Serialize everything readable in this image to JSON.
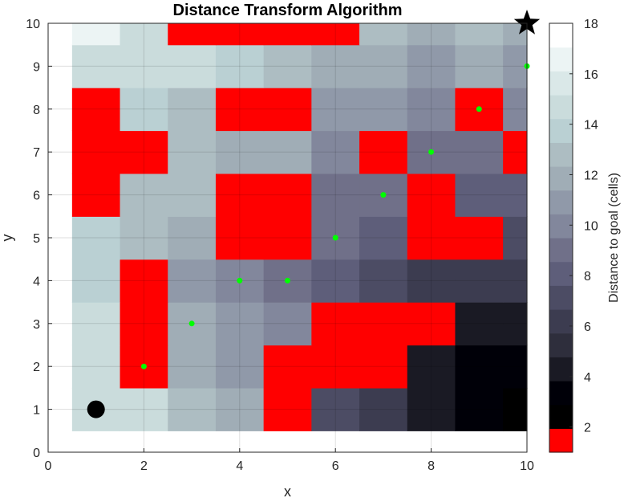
{
  "chart_data": {
    "type": "heatmap",
    "title": "Distance Transform Algorithm",
    "xlabel": "x",
    "ylabel": "y",
    "xlim": [
      0,
      10
    ],
    "ylim": [
      0,
      10
    ],
    "x_ticks": [
      "0",
      "2",
      "4",
      "6",
      "8",
      "10"
    ],
    "y_ticks": [
      "0",
      "1",
      "2",
      "3",
      "4",
      "5",
      "6",
      "7",
      "8",
      "9",
      "10"
    ],
    "grid": true,
    "colorbar": {
      "label": "Distance to goal (cells)",
      "range": [
        1,
        18
      ],
      "ticks": [
        "2",
        "4",
        "6",
        "8",
        "10",
        "12",
        "14",
        "16",
        "18"
      ],
      "obstacle_color": "#ff0000",
      "colors": [
        "#ff0000",
        "#000000",
        "#000008",
        "#1a1a24",
        "#2e2e3c",
        "#3c3c50",
        "#4c4c64",
        "#5e5e7a",
        "#707089",
        "#82879c",
        "#9099a9",
        "#a0adb6",
        "#adbdc2",
        "#bad0d3",
        "#cadcdc",
        "#dae8e8",
        "#ecf4f4",
        "#ffffff"
      ]
    },
    "cell_values": [
      [
        null,
        15,
        15,
        13,
        12,
        null,
        7,
        6,
        4,
        3,
        2
      ],
      [
        null,
        15,
        null,
        12,
        11,
        null,
        null,
        null,
        4,
        3,
        3
      ],
      [
        null,
        15,
        null,
        12,
        11,
        10,
        null,
        null,
        null,
        4,
        4
      ],
      [
        null,
        14,
        null,
        11,
        10,
        9,
        8,
        7,
        6,
        6,
        6
      ],
      [
        null,
        14,
        13,
        12,
        null,
        null,
        9,
        8,
        null,
        null,
        7
      ],
      [
        null,
        null,
        13,
        13,
        null,
        null,
        9,
        9,
        null,
        8,
        8
      ],
      [
        null,
        null,
        null,
        13,
        12,
        12,
        10,
        null,
        9,
        9,
        null
      ],
      [
        null,
        null,
        14,
        13,
        null,
        null,
        11,
        11,
        10,
        null,
        10
      ],
      [
        null,
        15,
        15,
        15,
        14,
        13,
        12,
        12,
        11,
        12,
        11
      ],
      [
        null,
        17,
        15,
        null,
        null,
        null,
        null,
        13,
        12,
        13,
        12
      ]
    ],
    "path": {
      "x": [
        1,
        2,
        3,
        4,
        5,
        6,
        7,
        8,
        9,
        10
      ],
      "y": [
        1,
        2,
        3,
        4,
        4,
        5,
        6,
        7,
        8,
        9
      ],
      "color": "#00ff00"
    },
    "start": {
      "x": 1,
      "y": 1,
      "color": "#000000"
    },
    "goal": {
      "x": 10,
      "y": 10,
      "color": "#000000"
    }
  }
}
